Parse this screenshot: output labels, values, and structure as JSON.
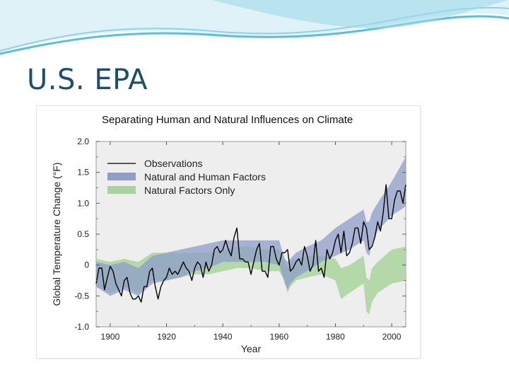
{
  "slide": {
    "title": "U.S. EPA",
    "colors": {
      "title": "#1f4e6b",
      "header_wave_dark": "#5bbfd8",
      "header_wave_light": "#bfe6f1"
    }
  },
  "chart_data": {
    "type": "line",
    "title": "Separating Human and Natural Influences on Climate",
    "xlabel": "Year",
    "ylabel": "Global Temperature Change (°F)",
    "xlim": [
      1895,
      2005
    ],
    "ylim": [
      -1.0,
      2.0
    ],
    "x_ticks": [
      1900,
      1920,
      1940,
      1960,
      1980,
      2000
    ],
    "y_ticks": [
      -1.0,
      -0.5,
      0,
      0.5,
      1.0,
      1.5,
      2.0
    ],
    "y_tick_labels": [
      "-1.0",
      "-0.5",
      "0",
      "0.5",
      "1.0",
      "1.5",
      "2.0"
    ],
    "grid": false,
    "plot_background": "#eeeeee",
    "legend_position": "top-left",
    "legend": [
      "Observations",
      "Natural and Human Factors",
      "Natural Factors Only"
    ],
    "series": [
      {
        "name": "Natural Factors Only",
        "kind": "band",
        "color": "#a9d39e",
        "opacity": 0.85,
        "x": [
          1895,
          1900,
          1905,
          1910,
          1915,
          1920,
          1925,
          1930,
          1935,
          1940,
          1945,
          1950,
          1955,
          1960,
          1962,
          1963,
          1964,
          1966,
          1970,
          1975,
          1980,
          1982,
          1985,
          1990,
          1991,
          1992,
          1993,
          1995,
          2000,
          2005
        ],
        "lower": [
          -0.35,
          -0.45,
          -0.35,
          -0.45,
          -0.25,
          -0.25,
          -0.2,
          -0.15,
          -0.15,
          -0.1,
          -0.05,
          -0.05,
          -0.1,
          -0.1,
          -0.25,
          -0.45,
          -0.35,
          -0.25,
          -0.2,
          -0.15,
          -0.25,
          -0.55,
          -0.45,
          -0.3,
          -0.75,
          -0.8,
          -0.6,
          -0.45,
          -0.3,
          -0.25
        ],
        "upper": [
          0.1,
          0.05,
          0.1,
          0.05,
          0.2,
          0.2,
          0.2,
          0.2,
          0.2,
          0.25,
          0.3,
          0.3,
          0.25,
          0.25,
          0.1,
          -0.05,
          0.05,
          0.1,
          0.15,
          0.15,
          0.1,
          -0.05,
          0.0,
          0.15,
          -0.2,
          -0.25,
          -0.05,
          0.05,
          0.25,
          0.3
        ]
      },
      {
        "name": "Natural and Human Factors",
        "kind": "band",
        "color": "#8f9dc8",
        "opacity": 0.75,
        "x": [
          1895,
          1900,
          1905,
          1910,
          1915,
          1920,
          1925,
          1930,
          1935,
          1940,
          1945,
          1950,
          1955,
          1960,
          1962,
          1963,
          1964,
          1966,
          1970,
          1975,
          1980,
          1985,
          1990,
          1991,
          1992,
          1993,
          1995,
          2000,
          2005
        ],
        "lower": [
          -0.35,
          -0.5,
          -0.4,
          -0.5,
          -0.3,
          -0.25,
          -0.2,
          -0.1,
          -0.05,
          0.05,
          0.05,
          0.05,
          0.05,
          0.0,
          -0.3,
          -0.4,
          -0.3,
          -0.2,
          -0.1,
          0.05,
          0.15,
          0.25,
          0.4,
          0.2,
          0.15,
          0.35,
          0.55,
          0.8,
          0.95
        ],
        "upper": [
          0.05,
          0.0,
          0.05,
          -0.05,
          0.15,
          0.2,
          0.25,
          0.3,
          0.35,
          0.4,
          0.4,
          0.4,
          0.4,
          0.4,
          0.1,
          0.05,
          0.1,
          0.2,
          0.3,
          0.4,
          0.6,
          0.75,
          0.9,
          0.7,
          0.7,
          0.85,
          1.0,
          1.35,
          1.75
        ]
      },
      {
        "name": "Observations",
        "kind": "line",
        "color": "#000000",
        "x": [
          1895,
          1896,
          1897,
          1898,
          1899,
          1900,
          1901,
          1902,
          1903,
          1904,
          1905,
          1906,
          1907,
          1908,
          1909,
          1910,
          1911,
          1912,
          1913,
          1914,
          1915,
          1916,
          1917,
          1918,
          1919,
          1920,
          1921,
          1922,
          1923,
          1924,
          1925,
          1926,
          1927,
          1928,
          1929,
          1930,
          1931,
          1932,
          1933,
          1934,
          1935,
          1936,
          1937,
          1938,
          1939,
          1940,
          1941,
          1942,
          1943,
          1944,
          1945,
          1946,
          1947,
          1948,
          1949,
          1950,
          1951,
          1952,
          1953,
          1954,
          1955,
          1956,
          1957,
          1958,
          1959,
          1960,
          1961,
          1962,
          1963,
          1964,
          1965,
          1966,
          1967,
          1968,
          1969,
          1970,
          1971,
          1972,
          1973,
          1974,
          1975,
          1976,
          1977,
          1978,
          1979,
          1980,
          1981,
          1982,
          1983,
          1984,
          1985,
          1986,
          1987,
          1988,
          1989,
          1990,
          1991,
          1992,
          1993,
          1994,
          1995,
          1996,
          1997,
          1998,
          1999,
          2000,
          2001,
          2002,
          2003,
          2004,
          2005
        ],
        "y": [
          -0.3,
          -0.05,
          -0.05,
          -0.4,
          -0.2,
          -0.02,
          -0.1,
          -0.3,
          -0.4,
          -0.5,
          -0.25,
          -0.2,
          -0.45,
          -0.55,
          -0.55,
          -0.5,
          -0.6,
          -0.35,
          -0.35,
          -0.1,
          -0.05,
          -0.35,
          -0.55,
          -0.35,
          -0.25,
          -0.2,
          -0.05,
          -0.15,
          -0.1,
          -0.15,
          -0.05,
          0.05,
          -0.05,
          -0.1,
          -0.25,
          -0.05,
          0.05,
          0.0,
          -0.2,
          0.05,
          -0.1,
          0.0,
          0.25,
          0.3,
          0.2,
          0.25,
          0.4,
          0.25,
          0.15,
          0.45,
          0.6,
          0.1,
          0.1,
          0.05,
          0.05,
          -0.15,
          0.05,
          0.25,
          0.35,
          -0.1,
          -0.1,
          -0.2,
          0.3,
          0.3,
          0.1,
          0.0,
          0.2,
          0.2,
          0.25,
          -0.1,
          -0.05,
          0.05,
          0.1,
          0.0,
          0.3,
          0.15,
          -0.1,
          0.0,
          0.4,
          -0.1,
          -0.05,
          -0.2,
          0.25,
          0.1,
          0.2,
          0.4,
          0.5,
          0.2,
          0.55,
          0.15,
          0.2,
          0.35,
          0.6,
          0.6,
          0.35,
          0.7,
          0.6,
          0.25,
          0.3,
          0.45,
          0.7,
          0.55,
          0.85,
          1.3,
          0.75,
          0.75,
          1.05,
          1.2,
          1.2,
          1.0,
          1.3
        ]
      }
    ]
  }
}
